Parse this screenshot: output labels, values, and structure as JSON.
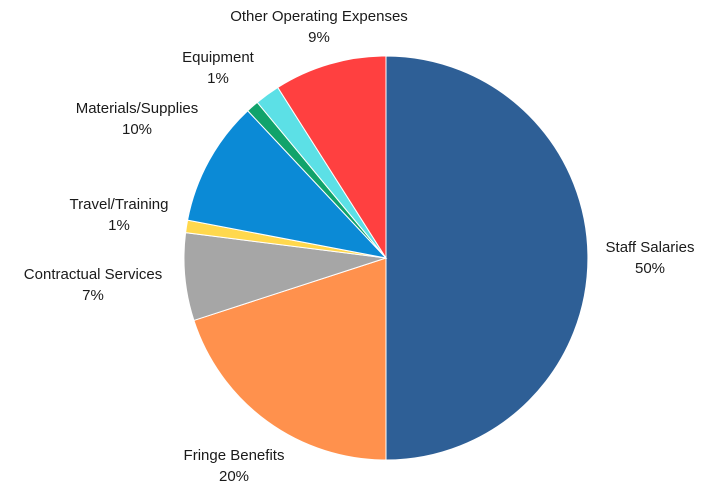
{
  "chart_data": {
    "type": "pie",
    "title": "",
    "slices": [
      {
        "label": "Staff Salaries",
        "value": 50,
        "pct_label": "50%",
        "color": "#2e5f96"
      },
      {
        "label": "Fringe Benefits",
        "value": 20,
        "pct_label": "20%",
        "color": "#ff914d"
      },
      {
        "label": "Contractual Services",
        "value": 7,
        "pct_label": "7%",
        "color": "#a6a6a6"
      },
      {
        "label": "Travel/Training",
        "value": 1,
        "pct_label": "1%",
        "color": "#ffd84d"
      },
      {
        "label": "Materials/Supplies",
        "value": 10,
        "pct_label": "10%",
        "color": "#0b8ad6"
      },
      {
        "label": "Equipment",
        "value": 1,
        "pct_label": "1%",
        "color": "#11a36b"
      },
      {
        "label": "",
        "value": 2,
        "pct_label": "",
        "color": "#5ce0e6"
      },
      {
        "label": "Other Operating Expenses",
        "value": 9,
        "pct_label": "9%",
        "color": "#ff4040"
      }
    ],
    "start": "12 o'clock",
    "direction": "clockwise",
    "legend": "none"
  }
}
